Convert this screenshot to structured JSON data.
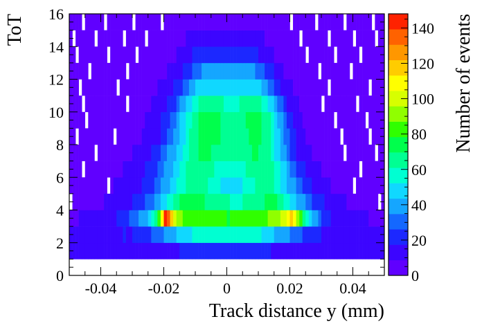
{
  "chart_data": {
    "type": "heatmap",
    "xlabel": "Track distance y (mm)",
    "ylabel": "ToT",
    "zlabel": "Number of events",
    "xlim": [
      -0.05,
      0.05
    ],
    "ylim": [
      0,
      16
    ],
    "zlim": [
      0,
      148
    ],
    "x_ticks": [
      "-0.04",
      "-0.02",
      "0",
      "0.02",
      "0.04"
    ],
    "x_tick_values": [
      -0.04,
      -0.02,
      0,
      0.02,
      0.04
    ],
    "y_ticks": [
      "0",
      "2",
      "4",
      "6",
      "8",
      "10",
      "12",
      "14",
      "16"
    ],
    "z_ticks": [
      "0",
      "20",
      "40",
      "60",
      "80",
      "100",
      "120",
      "140"
    ],
    "x_bin_count": 100,
    "y_bin_count": 15,
    "y_bin_edges_start": 1,
    "y_bin_width": 1,
    "palette": [
      "#6000ff",
      "#3c05ff",
      "#1c28ff",
      "#1468ff",
      "#15a6ff",
      "#10d8ff",
      "#00ffd2",
      "#00ff93",
      "#00ff4c",
      "#30ff00",
      "#90ff00",
      "#d7ff00",
      "#ffff00",
      "#ffcc00",
      "#ff9700",
      "#ff6200",
      "#ff2200"
    ],
    "description_rows": "row index 0 = ToT bin [1,2], row 14 = ToT bin [15,16]; cell value = number of events",
    "rows": [
      [
        14,
        14,
        14,
        14,
        12,
        13,
        13,
        12,
        12,
        12,
        11,
        12,
        12,
        12,
        12,
        13,
        14,
        12,
        13,
        14,
        15,
        16,
        16,
        14,
        16,
        15,
        16,
        17,
        16,
        15,
        15,
        16,
        16,
        15,
        16,
        18,
        19,
        20,
        21,
        21,
        22,
        21,
        21,
        22,
        22,
        22,
        23,
        23,
        22,
        22,
        22,
        23,
        23,
        22,
        22,
        21,
        21,
        20,
        21,
        21,
        20,
        19,
        19,
        18,
        16,
        16,
        15,
        17,
        16,
        15,
        16,
        14,
        16,
        15,
        15,
        14,
        14,
        13,
        14,
        13,
        13,
        12,
        13,
        11,
        12,
        11,
        12,
        11,
        12,
        12,
        11,
        12,
        11,
        11,
        11,
        11,
        12,
        10,
        11,
        11
      ],
      [
        10,
        11,
        11,
        10,
        11,
        11,
        12,
        10,
        11,
        13,
        12,
        13,
        14,
        14,
        16,
        15,
        16,
        18,
        17,
        17,
        19,
        20,
        21,
        22,
        24,
        26,
        27,
        30,
        31,
        34,
        36,
        38,
        40,
        42,
        44,
        47,
        49,
        51,
        52,
        54,
        55,
        56,
        57,
        58,
        58,
        58,
        59,
        58,
        58,
        58,
        58,
        59,
        58,
        58,
        58,
        58,
        58,
        57,
        56,
        55,
        53,
        51,
        49,
        47,
        45,
        43,
        41,
        39,
        37,
        35,
        32,
        30,
        29,
        27,
        25,
        23,
        22,
        20,
        19,
        18,
        16,
        16,
        15,
        13,
        14,
        12,
        13,
        12,
        11,
        11,
        11,
        11,
        11,
        10,
        10,
        10,
        11,
        11,
        10,
        10
      ],
      [
        8,
        8,
        8,
        9,
        9,
        9,
        10,
        10,
        11,
        11,
        12,
        12,
        13,
        14,
        16,
        18,
        20,
        23,
        25,
        28,
        31,
        34,
        37,
        41,
        42,
        48,
        55,
        68,
        85,
        112,
        140,
        133,
        118,
        102,
        92,
        88,
        84,
        82,
        80,
        81,
        80,
        82,
        84,
        86,
        85,
        84,
        83,
        82,
        80,
        79,
        78,
        80,
        82,
        84,
        84,
        83,
        82,
        80,
        79,
        80,
        82,
        84,
        86,
        88,
        90,
        92,
        95,
        98,
        104,
        110,
        121,
        112,
        95,
        80,
        68,
        56,
        48,
        41,
        36,
        31,
        26,
        22,
        19,
        16,
        14,
        12,
        12,
        11,
        10,
        10,
        9,
        9,
        9,
        9,
        9,
        8,
        8,
        8,
        8,
        8
      ],
      [
        0,
        6,
        6,
        6,
        6,
        7,
        7,
        7,
        7,
        8,
        8,
        9,
        9,
        10,
        11,
        12,
        13,
        14,
        15,
        17,
        18,
        20,
        22,
        24,
        27,
        30,
        33,
        37,
        41,
        45,
        49,
        53,
        58,
        62,
        66,
        70,
        72,
        73,
        74,
        74,
        73,
        72,
        71,
        69,
        67,
        66,
        65,
        64,
        63,
        62,
        61,
        60,
        60,
        60,
        60,
        61,
        62,
        63,
        64,
        66,
        67,
        69,
        71,
        72,
        72,
        70,
        67,
        63,
        59,
        55,
        51,
        47,
        43,
        39,
        35,
        31,
        28,
        25,
        22,
        20,
        18,
        16,
        14,
        13,
        12,
        11,
        10,
        9,
        8,
        8,
        7,
        7,
        7,
        6,
        6,
        6,
        6,
        6,
        0,
        5
      ],
      [
        5,
        5,
        5,
        6,
        6,
        6,
        6,
        6,
        7,
        7,
        7,
        8,
        0,
        8,
        9,
        9,
        10,
        11,
        11,
        12,
        14,
        15,
        17,
        19,
        21,
        23,
        26,
        29,
        32,
        35,
        38,
        42,
        46,
        50,
        54,
        57,
        60,
        62,
        64,
        65,
        65,
        64,
        63,
        61,
        59,
        57,
        55,
        53,
        52,
        51,
        50,
        50,
        50,
        51,
        52,
        53,
        55,
        57,
        59,
        61,
        63,
        64,
        65,
        64,
        62,
        59,
        55,
        51,
        47,
        43,
        39,
        35,
        31,
        27,
        24,
        21,
        18,
        16,
        14,
        12,
        11,
        10,
        9,
        8,
        8,
        7,
        7,
        6,
        6,
        6,
        0,
        5,
        5,
        5,
        5,
        5,
        5,
        5,
        5,
        5
      ],
      [
        5,
        5,
        5,
        5,
        0,
        5,
        5,
        6,
        6,
        6,
        6,
        6,
        7,
        7,
        7,
        8,
        8,
        9,
        10,
        11,
        12,
        13,
        14,
        16,
        18,
        20,
        23,
        26,
        29,
        32,
        35,
        39,
        43,
        47,
        51,
        55,
        58,
        61,
        63,
        65,
        66,
        66,
        66,
        65,
        63,
        61,
        59,
        58,
        56,
        56,
        55,
        56,
        56,
        57,
        58,
        60,
        62,
        64,
        66,
        67,
        68,
        68,
        67,
        65,
        62,
        58,
        54,
        49,
        44,
        39,
        34,
        29,
        25,
        21,
        18,
        15,
        13,
        11,
        10,
        9,
        8,
        7,
        7,
        6,
        6,
        6,
        5,
        5,
        5,
        5,
        5,
        5,
        0,
        5,
        5,
        5,
        4,
        4,
        4,
        4
      ],
      [
        4,
        4,
        4,
        4,
        4,
        4,
        4,
        5,
        0,
        5,
        5,
        5,
        5,
        6,
        6,
        6,
        7,
        7,
        8,
        8,
        9,
        10,
        11,
        12,
        14,
        16,
        18,
        21,
        24,
        27,
        31,
        35,
        39,
        43,
        47,
        52,
        56,
        60,
        63,
        66,
        68,
        70,
        71,
        71,
        70,
        69,
        67,
        66,
        64,
        63,
        63,
        63,
        63,
        64,
        65,
        66,
        68,
        69,
        70,
        70,
        69,
        67,
        64,
        61,
        56,
        51,
        46,
        40,
        35,
        30,
        25,
        21,
        17,
        14,
        12,
        10,
        9,
        8,
        7,
        6,
        6,
        5,
        5,
        5,
        4,
        4,
        4,
        0,
        4,
        4,
        4,
        4,
        4,
        4,
        4,
        4,
        4,
        0,
        4,
        4
      ],
      [
        4,
        4,
        0,
        4,
        4,
        4,
        4,
        4,
        4,
        4,
        4,
        5,
        5,
        5,
        0,
        5,
        6,
        6,
        6,
        7,
        7,
        8,
        8,
        9,
        10,
        11,
        13,
        15,
        17,
        20,
        23,
        27,
        31,
        36,
        41,
        46,
        51,
        56,
        61,
        65,
        68,
        71,
        73,
        74,
        74,
        73,
        72,
        70,
        68,
        66,
        65,
        64,
        64,
        65,
        66,
        68,
        69,
        71,
        72,
        72,
        71,
        69,
        66,
        62,
        57,
        51,
        45,
        39,
        33,
        27,
        22,
        18,
        14,
        11,
        9,
        8,
        7,
        6,
        6,
        5,
        5,
        5,
        4,
        4,
        4,
        4,
        0,
        4,
        4,
        4,
        4,
        4,
        4,
        4,
        4,
        0,
        4,
        4,
        4,
        4
      ],
      [
        3,
        3,
        3,
        3,
        3,
        0,
        3,
        4,
        4,
        4,
        4,
        4,
        4,
        4,
        4,
        4,
        5,
        5,
        5,
        6,
        6,
        7,
        7,
        8,
        9,
        10,
        11,
        13,
        15,
        18,
        21,
        25,
        29,
        34,
        39,
        44,
        50,
        55,
        60,
        64,
        68,
        71,
        73,
        74,
        74,
        74,
        73,
        71,
        69,
        67,
        66,
        65,
        65,
        66,
        67,
        68,
        70,
        71,
        72,
        72,
        71,
        69,
        65,
        61,
        55,
        49,
        43,
        36,
        30,
        24,
        19,
        15,
        12,
        10,
        8,
        7,
        6,
        5,
        5,
        4,
        4,
        4,
        4,
        4,
        0,
        4,
        4,
        4,
        3,
        3,
        3,
        3,
        3,
        3,
        0,
        3,
        3,
        3,
        3,
        3
      ],
      [
        3,
        3,
        3,
        3,
        0,
        3,
        3,
        3,
        3,
        3,
        3,
        3,
        3,
        4,
        4,
        4,
        4,
        4,
        0,
        5,
        5,
        5,
        6,
        6,
        7,
        8,
        9,
        10,
        12,
        14,
        16,
        19,
        22,
        26,
        30,
        35,
        40,
        45,
        50,
        54,
        58,
        61,
        63,
        64,
        64,
        64,
        63,
        62,
        61,
        60,
        59,
        59,
        59,
        60,
        61,
        62,
        63,
        64,
        64,
        63,
        61,
        58,
        54,
        49,
        44,
        38,
        32,
        27,
        22,
        17,
        14,
        11,
        9,
        7,
        6,
        5,
        5,
        4,
        4,
        4,
        0,
        3,
        3,
        3,
        3,
        3,
        3,
        3,
        3,
        3,
        3,
        0,
        3,
        3,
        3,
        3,
        3,
        3,
        3,
        3
      ],
      [
        3,
        3,
        3,
        0,
        3,
        3,
        3,
        3,
        3,
        3,
        3,
        3,
        3,
        3,
        3,
        0,
        3,
        4,
        4,
        4,
        4,
        5,
        5,
        5,
        6,
        6,
        7,
        8,
        9,
        11,
        12,
        14,
        16,
        19,
        22,
        25,
        29,
        33,
        37,
        40,
        44,
        47,
        49,
        51,
        52,
        52,
        52,
        51,
        50,
        49,
        49,
        49,
        49,
        50,
        51,
        52,
        52,
        51,
        50,
        48,
        45,
        42,
        38,
        34,
        29,
        25,
        21,
        17,
        14,
        11,
        9,
        7,
        6,
        5,
        4,
        4,
        4,
        3,
        3,
        3,
        3,
        3,
        0,
        3,
        3,
        3,
        3,
        3,
        3,
        3,
        3,
        3,
        3,
        3,
        3,
        0,
        3,
        3,
        3,
        3
      ],
      [
        3,
        3,
        3,
        3,
        3,
        3,
        0,
        3,
        3,
        3,
        3,
        3,
        3,
        3,
        3,
        3,
        3,
        3,
        0,
        3,
        4,
        4,
        4,
        4,
        4,
        5,
        5,
        6,
        7,
        7,
        8,
        10,
        11,
        13,
        15,
        17,
        20,
        22,
        25,
        28,
        30,
        33,
        35,
        37,
        38,
        39,
        39,
        39,
        39,
        38,
        38,
        38,
        38,
        39,
        39,
        39,
        38,
        37,
        35,
        33,
        30,
        27,
        24,
        21,
        18,
        15,
        12,
        10,
        8,
        7,
        6,
        5,
        4,
        4,
        3,
        3,
        3,
        3,
        3,
        0,
        3,
        3,
        3,
        3,
        3,
        3,
        3,
        3,
        3,
        0,
        3,
        3,
        3,
        3,
        3,
        3,
        3,
        3,
        3,
        3
      ],
      [
        3,
        3,
        0,
        3,
        3,
        3,
        3,
        3,
        3,
        3,
        3,
        3,
        0,
        3,
        3,
        3,
        3,
        3,
        3,
        3,
        3,
        0,
        3,
        4,
        4,
        4,
        4,
        4,
        5,
        5,
        6,
        7,
        7,
        8,
        10,
        11,
        13,
        14,
        16,
        18,
        20,
        22,
        23,
        24,
        25,
        26,
        26,
        26,
        26,
        26,
        26,
        26,
        26,
        26,
        26,
        25,
        24,
        23,
        21,
        19,
        17,
        15,
        13,
        11,
        9,
        8,
        6,
        5,
        5,
        4,
        4,
        3,
        3,
        3,
        3,
        0,
        3,
        3,
        3,
        3,
        3,
        3,
        3,
        3,
        0,
        3,
        3,
        3,
        3,
        3,
        3,
        3,
        0,
        3,
        3,
        3,
        3,
        3,
        3,
        3
      ],
      [
        3,
        0,
        3,
        3,
        3,
        3,
        3,
        3,
        0,
        3,
        3,
        3,
        3,
        3,
        3,
        3,
        3,
        0,
        3,
        3,
        3,
        3,
        3,
        3,
        0,
        3,
        3,
        4,
        4,
        4,
        4,
        5,
        5,
        6,
        6,
        7,
        8,
        9,
        10,
        11,
        12,
        13,
        14,
        15,
        15,
        16,
        16,
        16,
        16,
        16,
        16,
        16,
        16,
        16,
        15,
        15,
        14,
        13,
        12,
        11,
        10,
        9,
        8,
        7,
        6,
        5,
        4,
        4,
        4,
        3,
        3,
        3,
        3,
        0,
        3,
        3,
        3,
        3,
        3,
        3,
        3,
        3,
        0,
        3,
        3,
        3,
        3,
        3,
        3,
        3,
        0,
        3,
        3,
        3,
        3,
        3,
        3,
        0,
        3,
        3
      ],
      [
        3,
        3,
        3,
        3,
        0,
        3,
        3,
        3,
        3,
        3,
        3,
        0,
        3,
        3,
        3,
        3,
        3,
        3,
        3,
        3,
        0,
        3,
        3,
        3,
        3,
        3,
        3,
        3,
        3,
        0,
        3,
        3,
        4,
        4,
        4,
        4,
        5,
        5,
        5,
        6,
        6,
        6,
        7,
        7,
        7,
        7,
        7,
        7,
        7,
        7,
        7,
        7,
        7,
        7,
        7,
        7,
        6,
        6,
        6,
        5,
        5,
        5,
        4,
        4,
        4,
        3,
        3,
        3,
        3,
        3,
        0,
        3,
        3,
        3,
        3,
        3,
        3,
        3,
        0,
        3,
        3,
        3,
        3,
        3,
        3,
        3,
        3,
        0,
        3,
        3,
        3,
        3,
        3,
        3,
        3,
        3,
        0,
        3,
        3,
        3
      ]
    ]
  }
}
